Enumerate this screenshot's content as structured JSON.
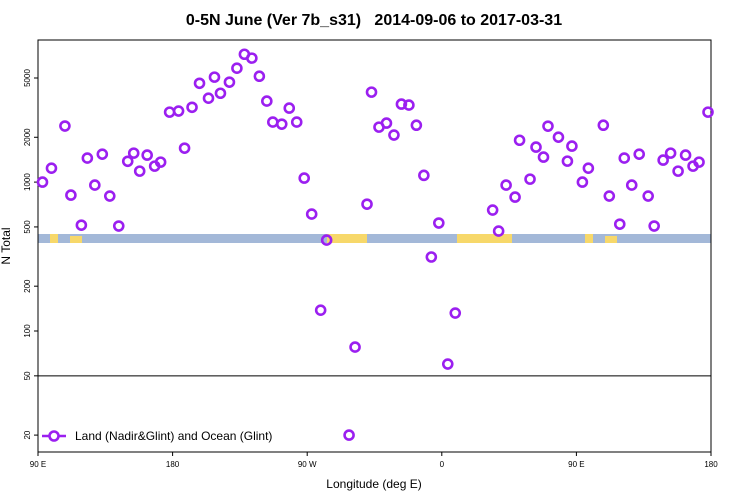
{
  "chart_data": {
    "type": "scatter",
    "title": "0-5N June (Ver 7b_s31)   2014-09-06 to 2017-03-31",
    "x_label": "Longitude (deg E)",
    "y_label": "N Total",
    "log_y": true,
    "legend": "bottom-left",
    "reference_line": 50,
    "xlim": [
      90,
      540
    ],
    "ylim": [
      15.4,
      9000
    ],
    "xticks": [
      {
        "value": 90,
        "label": "90 E"
      },
      {
        "value": 180,
        "label": "180"
      },
      {
        "value": 270,
        "label": "90 W"
      },
      {
        "value": 360,
        "label": "0"
      },
      {
        "value": 450,
        "label": "90 E"
      },
      {
        "value": 540,
        "label": "180"
      }
    ],
    "yticks": [
      20,
      50,
      100,
      200,
      500,
      1000,
      2000,
      5000
    ],
    "series": [
      {
        "name": "Land (Nadir&Glint) and Ocean (Glint)",
        "color": "#9b1ff0",
        "x": [
          93,
          99,
          108,
          112,
          119,
          123,
          128,
          133,
          138,
          144,
          150,
          154,
          158,
          163,
          168,
          172,
          178,
          184,
          188,
          193,
          198,
          204,
          208,
          212,
          218,
          223,
          228,
          233,
          238,
          243,
          247,
          253,
          258,
          263,
          268,
          273,
          279,
          283,
          298,
          302,
          310,
          313,
          318,
          323,
          328,
          333,
          338,
          343,
          348,
          353,
          358,
          364,
          369,
          394,
          398,
          403,
          409,
          412,
          419,
          423,
          428,
          431,
          438,
          444,
          447,
          454,
          458,
          468,
          472,
          479,
          482,
          487,
          492,
          498,
          502,
          508,
          513,
          518,
          523,
          528,
          532,
          538
        ],
        "values": [
          1000,
          1240,
          2380,
          818,
          514,
          1450,
          955,
          1540,
          806,
          507,
          1380,
          1565,
          1185,
          1518,
          1280,
          1362,
          2950,
          3000,
          1690,
          3180,
          4610,
          3660,
          5070,
          3950,
          4690,
          5820,
          7220,
          6800,
          5140,
          3500,
          2530,
          2450,
          3140,
          2530,
          1064,
          610,
          138,
          408,
          20,
          78,
          711,
          4020,
          2340,
          2490,
          2070,
          3340,
          3290,
          2410,
          1110,
          314,
          531,
          60,
          132,
          649,
          469,
          955,
          793,
          1910,
          1047,
          1718,
          1472,
          2375,
          2003,
          1383,
          1745,
          1000,
          1240,
          2410,
          806,
          522,
          1450,
          955,
          1540,
          806,
          507,
          1405,
          1565,
          1185,
          1518,
          1280,
          1362,
          2950
        ]
      }
    ]
  }
}
